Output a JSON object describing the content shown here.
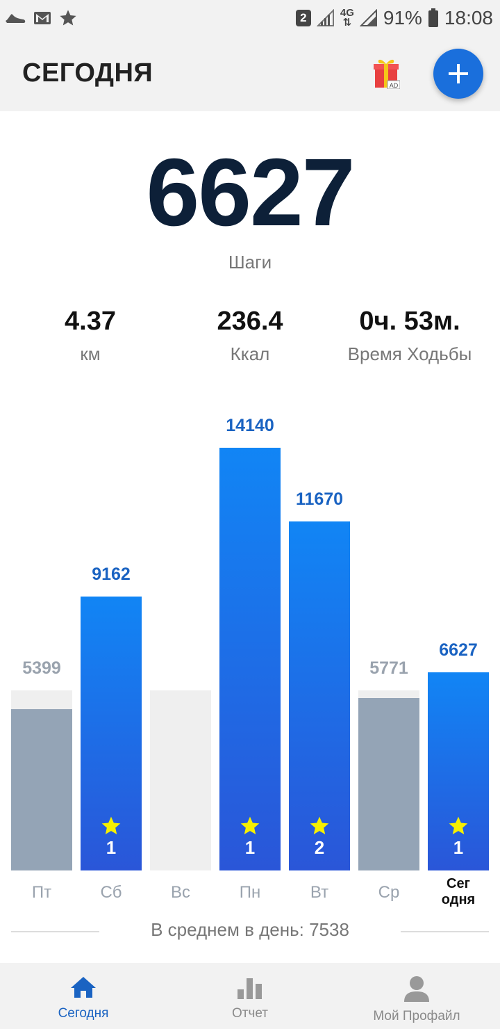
{
  "status_bar": {
    "sim_slot": "2",
    "network": "4G",
    "battery": "91%",
    "time": "18:08",
    "left_icons": [
      "shoe-icon",
      "gmail-icon",
      "star-icon"
    ]
  },
  "header": {
    "title": "СЕГОДНЯ",
    "gift_badge": "AD"
  },
  "today": {
    "steps": "6627",
    "steps_label": "Шаги",
    "distance_value": "4.37",
    "distance_label": "км",
    "calories_value": "236.4",
    "calories_label": "Ккал",
    "walk_time_value": "0ч. 53м.",
    "walk_time_label": "Время Ходьбы"
  },
  "chart_data": {
    "type": "bar",
    "categories": [
      "Пт",
      "Сб",
      "Вс",
      "Пн",
      "Вт",
      "Ср",
      "Сег одня"
    ],
    "values": [
      5399,
      9162,
      0,
      14140,
      11670,
      5771,
      6627
    ],
    "value_labels": [
      "5399",
      "9162",
      "",
      "14140",
      "11670",
      "5771",
      "6627"
    ],
    "goal": 6000,
    "goal_reached": [
      false,
      true,
      false,
      true,
      true,
      false,
      true
    ],
    "stars": [
      "",
      "1",
      "",
      "1",
      "2",
      "",
      "1"
    ],
    "colors": {
      "reached": "#1a63c2",
      "missed": "#94a4b6",
      "goal_track": "#efefef"
    }
  },
  "chart_days": [
    "Пт",
    "Сб",
    "Вс",
    "Пн",
    "Вт",
    "Ср"
  ],
  "chart_today_label_1": "Сег",
  "chart_today_label_2": "одня",
  "average": "В среднем в день: 7538",
  "bottom_nav": {
    "items": [
      {
        "label": "Сегодня",
        "icon": "home-icon",
        "active": true
      },
      {
        "label": "Отчет",
        "icon": "report-chart-icon",
        "active": false
      },
      {
        "label": "Мой Профайл",
        "icon": "profile-icon",
        "active": false
      }
    ]
  }
}
